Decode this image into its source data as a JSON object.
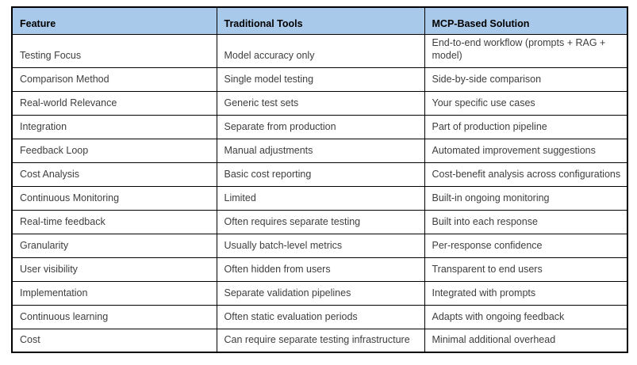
{
  "table": {
    "colors": {
      "header_bg": "#A8C9EA",
      "border": "#000000",
      "body_text": "#3E3E3E",
      "header_text": "#000000"
    },
    "headers": [
      "Feature",
      "Traditional Tools",
      "MCP-Based Solution"
    ],
    "rows": [
      {
        "feature": "Testing Focus",
        "traditional": "Model accuracy only",
        "mcp": "End-to-end workflow (prompts + RAG + model)"
      },
      {
        "feature": "Comparison Method",
        "traditional": "Single model testing",
        "mcp": "Side-by-side comparison"
      },
      {
        "feature": "Real-world Relevance",
        "traditional": "Generic test sets",
        "mcp": "Your specific use cases"
      },
      {
        "feature": "Integration",
        "traditional": "Separate from production",
        "mcp": "Part of production pipeline"
      },
      {
        "feature": "Feedback Loop",
        "traditional": "Manual adjustments",
        "mcp": "Automated improvement suggestions"
      },
      {
        "feature": "Cost Analysis",
        "traditional": "Basic cost reporting",
        "mcp": "Cost-benefit analysis across configurations"
      },
      {
        "feature": "Continuous Monitoring",
        "traditional": "Limited",
        "mcp": "Built-in ongoing monitoring"
      },
      {
        "feature": "Real-time feedback",
        "traditional": "Often requires separate testing",
        "mcp": "Built into each response"
      },
      {
        "feature": "Granularity",
        "traditional": "Usually batch-level metrics",
        "mcp": "Per-response confidence"
      },
      {
        "feature": "User visibility",
        "traditional": "Often hidden from users",
        "mcp": "Transparent to end users"
      },
      {
        "feature": "Implementation",
        "traditional": "Separate validation pipelines",
        "mcp": "Integrated with prompts"
      },
      {
        "feature": "Continuous learning",
        "traditional": "Often static evaluation periods",
        "mcp": "Adapts with ongoing feedback"
      },
      {
        "feature": "Cost",
        "traditional": "Can require separate testing infrastructure",
        "mcp": "Minimal additional overhead"
      }
    ]
  }
}
